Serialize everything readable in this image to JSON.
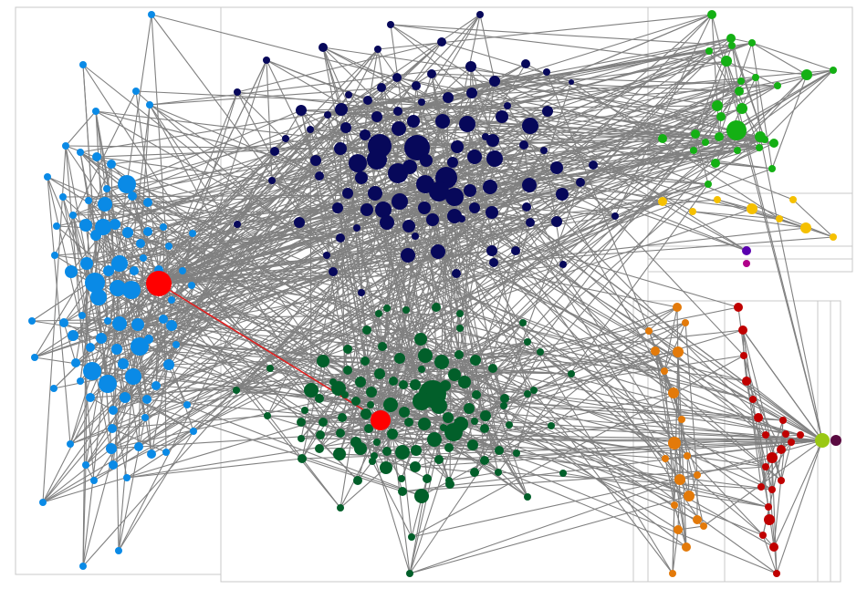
{
  "colors": {
    "edge": "#808080",
    "highlight_edge": "#e02020",
    "box": "#c8c8c8",
    "navy": "#07085a",
    "lightblue": "#0a8ae6",
    "darkgreen": "#025f2a",
    "green": "#14b014",
    "yellow": "#f5c000",
    "orange": "#e37a0a",
    "red": "#c00000",
    "purple": "#5a00b0",
    "magenta": "#b0008a",
    "hub": "#ff0000",
    "lime": "#9ac814",
    "plum": "#5a0a40"
  },
  "chart_data": {
    "type": "network",
    "layout": "group-in-a-box",
    "groups": [
      {
        "id": "navy-cluster",
        "color": "navy",
        "nodes": 118
      },
      {
        "id": "lightblue-cluster",
        "color": "lightblue",
        "nodes": 105
      },
      {
        "id": "darkgreen-cluster",
        "color": "darkgreen",
        "nodes": 110
      },
      {
        "id": "green-cluster",
        "color": "green",
        "nodes": 34
      },
      {
        "id": "orange-cluster",
        "color": "orange",
        "nodes": 24
      },
      {
        "id": "red-cluster",
        "color": "red",
        "nodes": 24
      },
      {
        "id": "yellow-cluster",
        "color": "yellow",
        "nodes": 9
      },
      {
        "id": "purple-cluster",
        "color": "purple",
        "nodes": 1
      },
      {
        "id": "magenta-cluster",
        "color": "magenta",
        "nodes": 1
      },
      {
        "id": "lime-cluster",
        "color": "lime",
        "nodes": 1
      },
      {
        "id": "plum-cluster",
        "color": "plum",
        "nodes": 1
      }
    ],
    "highlighted_nodes": [
      "hub-a",
      "hub-b"
    ],
    "highlighted_edge": [
      "hub-a",
      "hub-b"
    ]
  }
}
